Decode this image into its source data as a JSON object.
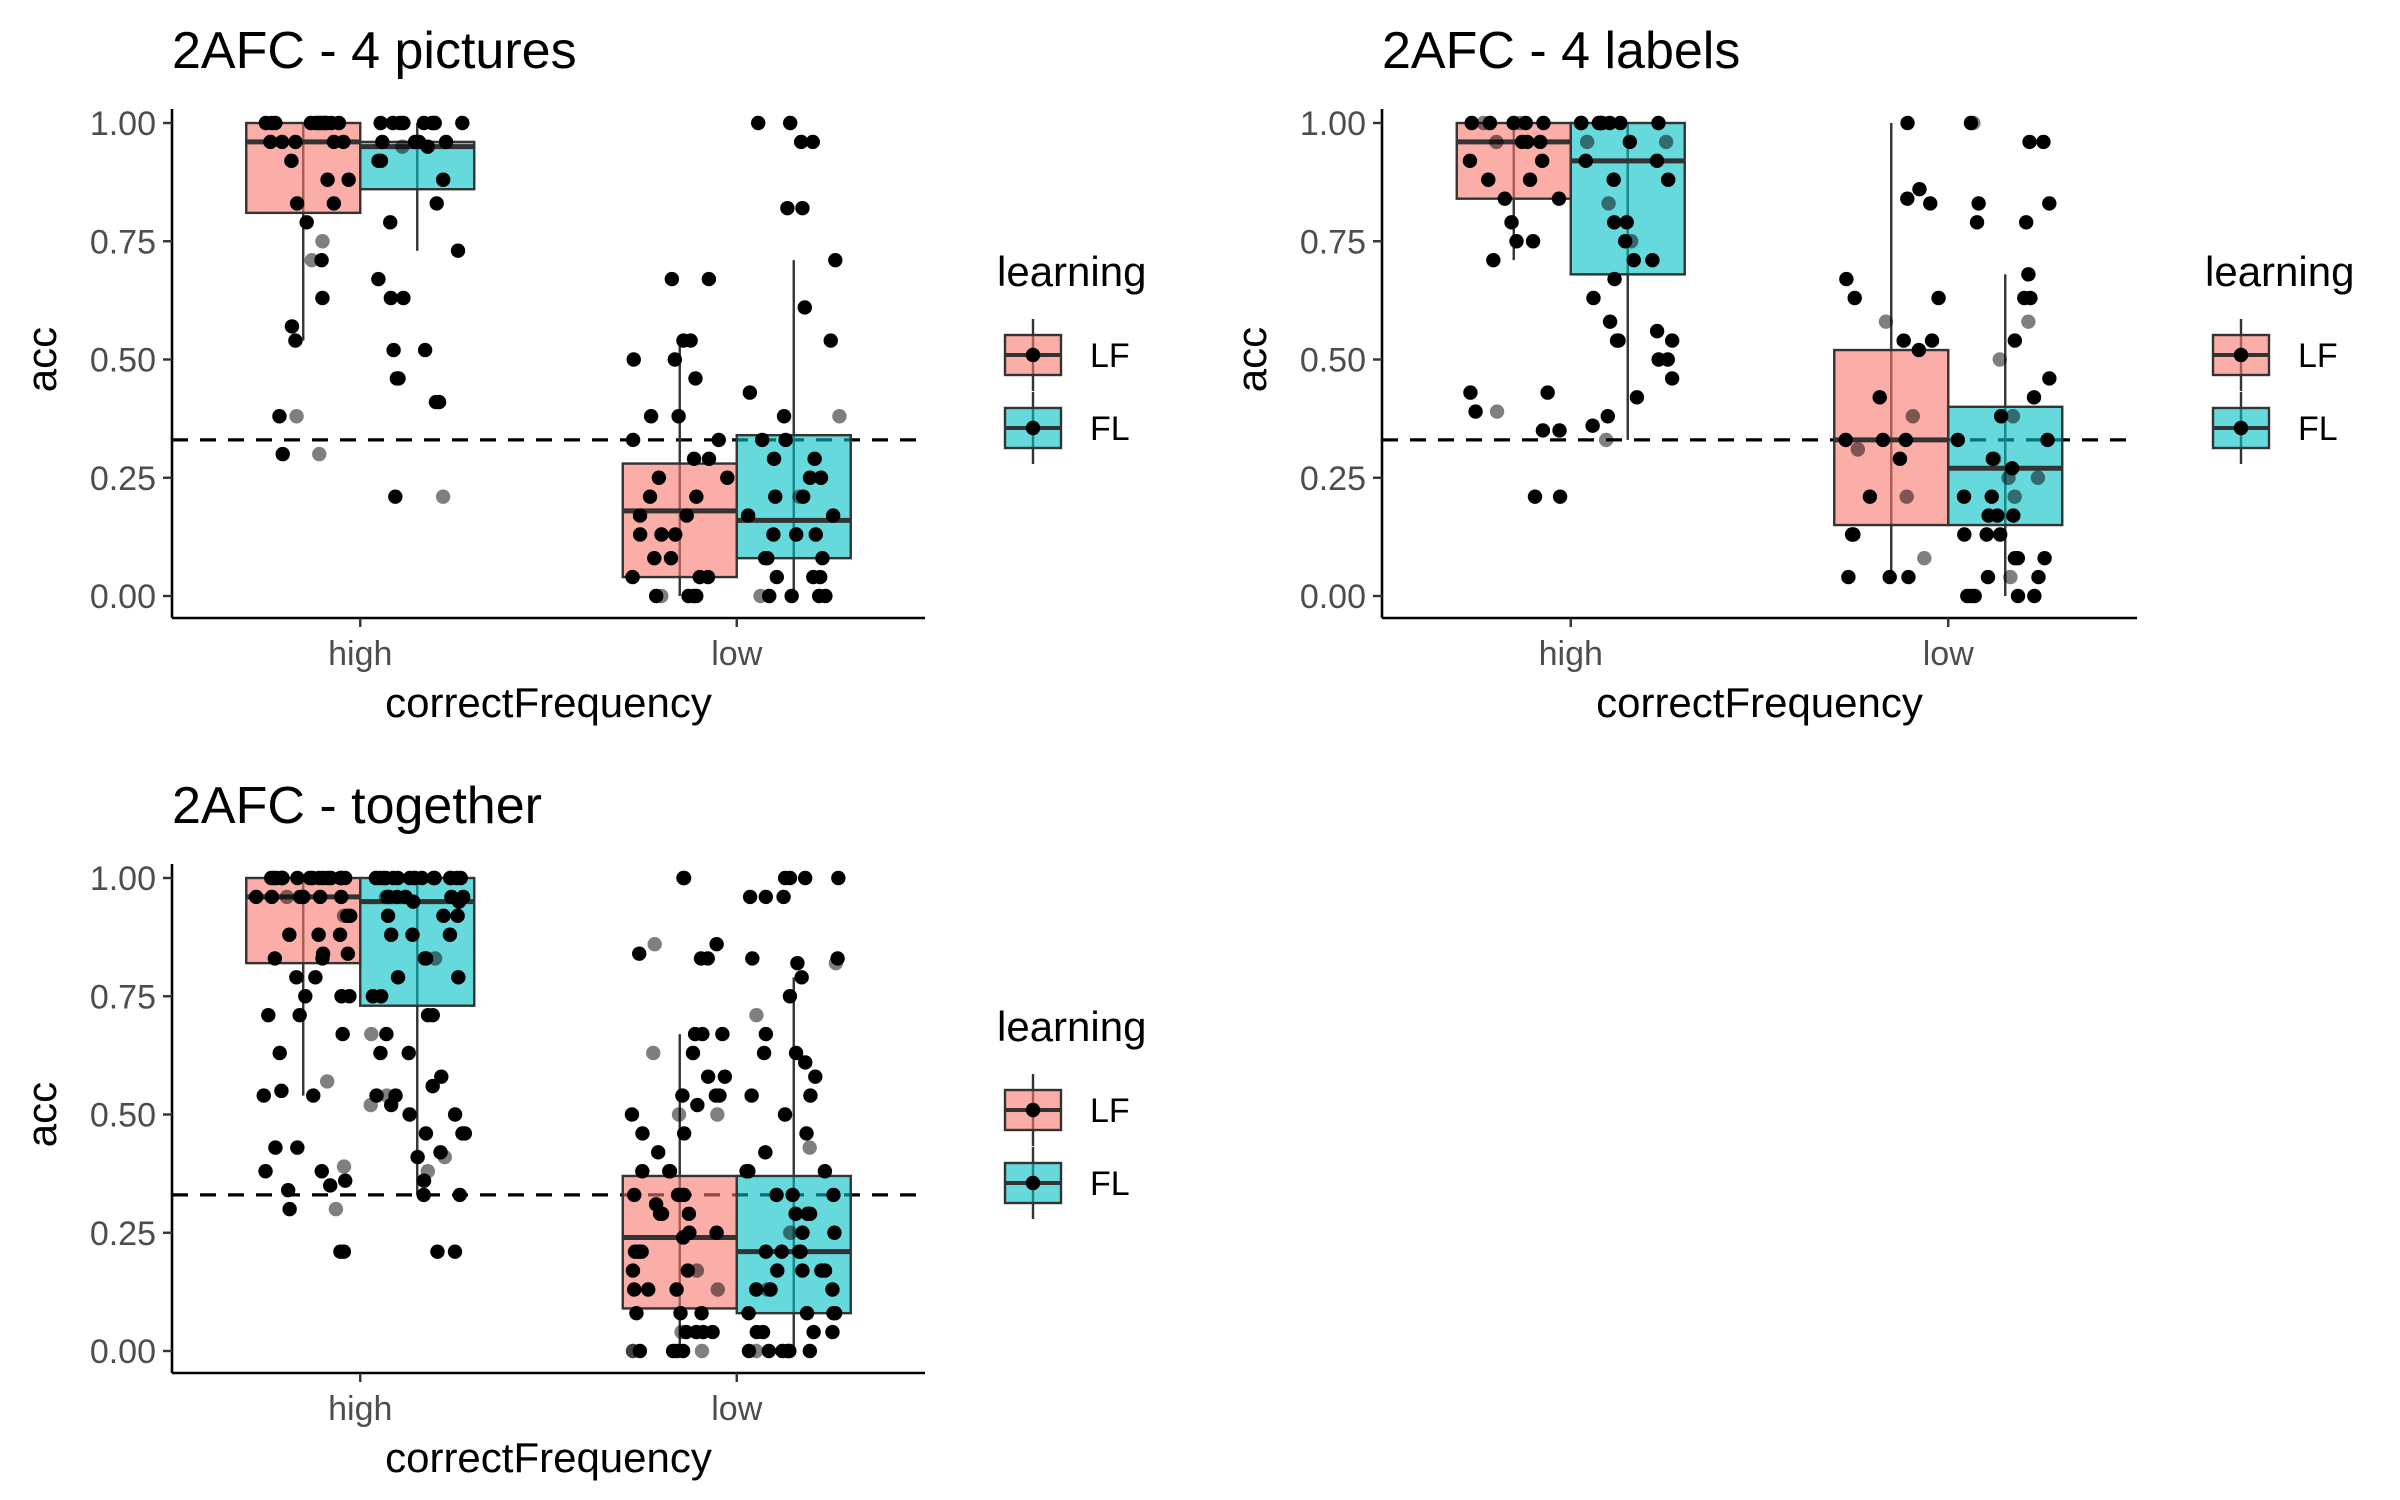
{
  "colors": {
    "LF": "#F8766D",
    "FL": "#00BFC4",
    "points": "#000000",
    "axis": "#000000"
  },
  "legend": {
    "title": "learning",
    "items": [
      "LF",
      "FL"
    ]
  },
  "chart_data": [
    {
      "type": "box",
      "title": "2AFC - 4 pictures",
      "xlabel": "correctFrequency",
      "ylabel": "acc",
      "ylim": [
        0,
        1
      ],
      "yticks": [
        "0.00",
        "0.25",
        "0.50",
        "0.75",
        "1.00"
      ],
      "categories": [
        "high",
        "low"
      ],
      "reference_line": 0.33,
      "series": [
        {
          "name": "LF",
          "boxes": [
            {
              "min": 0.54,
              "q1": 0.81,
              "median": 0.96,
              "q3": 1.0,
              "max": 1.0,
              "points": [
                1,
                1,
                1,
                1,
                1,
                1,
                1,
                1,
                1,
                1,
                1,
                1,
                0.96,
                0.96,
                0.96,
                0.96,
                0.96,
                0.92,
                0.88,
                0.88,
                0.83,
                0.83,
                0.79,
                0.75,
                0.71,
                0.71,
                0.63,
                0.57,
                0.54,
                0.38,
                0.38,
                0.3,
                0.3
              ]
            },
            {
              "min": 0.0,
              "q1": 0.04,
              "median": 0.18,
              "q3": 0.28,
              "max": 0.54,
              "points": [
                0.67,
                0.67,
                0.54,
                0.54,
                0.5,
                0.5,
                0.46,
                0.38,
                0.38,
                0.33,
                0.33,
                0.29,
                0.29,
                0.25,
                0.25,
                0.21,
                0.21,
                0.17,
                0.17,
                0.13,
                0.13,
                0.13,
                0.08,
                0.08,
                0.04,
                0.04,
                0.04,
                0,
                0,
                0,
                0,
                0
              ]
            }
          ]
        },
        {
          "name": "FL",
          "boxes": [
            {
              "min": 0.73,
              "q1": 0.86,
              "median": 0.95,
              "q3": 0.96,
              "max": 1.0,
              "points": [
                1,
                1,
                1,
                1,
                1,
                1,
                1,
                1,
                1,
                0.96,
                0.96,
                0.96,
                0.96,
                0.95,
                0.95,
                0.92,
                0.92,
                0.88,
                0.83,
                0.79,
                0.73,
                0.67,
                0.63,
                0.63,
                0.52,
                0.52,
                0.46,
                0.46,
                0.41,
                0.41,
                0.21,
                0.21
              ]
            },
            {
              "min": 0.0,
              "q1": 0.08,
              "median": 0.16,
              "q3": 0.34,
              "max": 0.71,
              "points": [
                1,
                1,
                0.96,
                0.96,
                0.82,
                0.82,
                0.71,
                0.61,
                0.54,
                0.43,
                0.38,
                0.38,
                0.33,
                0.33,
                0.29,
                0.29,
                0.25,
                0.25,
                0.21,
                0.21,
                0.21,
                0.17,
                0.17,
                0.13,
                0.13,
                0.13,
                0.08,
                0.08,
                0.08,
                0.04,
                0.04,
                0.04,
                0,
                0,
                0,
                0,
                0
              ]
            }
          ]
        }
      ]
    },
    {
      "type": "box",
      "title": "2AFC - 4 labels",
      "xlabel": "correctFrequency",
      "ylabel": "acc",
      "ylim": [
        0,
        1
      ],
      "yticks": [
        "0.00",
        "0.25",
        "0.50",
        "0.75",
        "1.00"
      ],
      "categories": [
        "high",
        "low"
      ],
      "reference_line": 0.33,
      "series": [
        {
          "name": "LF",
          "boxes": [
            {
              "min": 0.71,
              "q1": 0.84,
              "median": 0.96,
              "q3": 1.0,
              "max": 1.0,
              "points": [
                1,
                1,
                1,
                1,
                1,
                1,
                1,
                0.96,
                0.96,
                0.96,
                0.96,
                0.92,
                0.92,
                0.88,
                0.88,
                0.84,
                0.84,
                0.79,
                0.75,
                0.75,
                0.71,
                0.43,
                0.43,
                0.39,
                0.39,
                0.35,
                0.35,
                0.21,
                0.21
              ]
            },
            {
              "min": 0.04,
              "q1": 0.15,
              "median": 0.33,
              "q3": 0.52,
              "max": 1.0,
              "points": [
                1,
                0.86,
                0.84,
                0.83,
                0.67,
                0.63,
                0.63,
                0.58,
                0.54,
                0.54,
                0.52,
                0.42,
                0.38,
                0.33,
                0.33,
                0.33,
                0.31,
                0.29,
                0.21,
                0.21,
                0.13,
                0.13,
                0.08,
                0.04,
                0.04,
                0.04
              ]
            }
          ]
        },
        {
          "name": "FL",
          "boxes": [
            {
              "min": 0.33,
              "q1": 0.68,
              "median": 0.92,
              "q3": 1.0,
              "max": 1.0,
              "points": [
                1,
                1,
                1,
                1,
                1,
                1,
                1,
                1,
                0.96,
                0.96,
                0.96,
                0.92,
                0.92,
                0.88,
                0.88,
                0.83,
                0.79,
                0.79,
                0.75,
                0.75,
                0.71,
                0.71,
                0.67,
                0.63,
                0.58,
                0.56,
                0.54,
                0.54,
                0.54,
                0.5,
                0.5,
                0.46,
                0.42,
                0.38,
                0.36,
                0.33
              ]
            },
            {
              "min": 0.0,
              "q1": 0.15,
              "median": 0.27,
              "q3": 0.4,
              "max": 0.68,
              "points": [
                1,
                1,
                0.96,
                0.96,
                0.83,
                0.83,
                0.79,
                0.79,
                0.68,
                0.63,
                0.63,
                0.58,
                0.54,
                0.5,
                0.46,
                0.42,
                0.38,
                0.38,
                0.33,
                0.33,
                0.29,
                0.29,
                0.27,
                0.25,
                0.25,
                0.21,
                0.21,
                0.21,
                0.17,
                0.17,
                0.17,
                0.13,
                0.13,
                0.13,
                0.08,
                0.08,
                0.08,
                0.04,
                0.04,
                0.04,
                0,
                0,
                0,
                0,
                0
              ]
            }
          ]
        }
      ]
    },
    {
      "type": "box",
      "title": "2AFC - together",
      "xlabel": "correctFrequency",
      "ylabel": "acc",
      "ylim": [
        0,
        1
      ],
      "yticks": [
        "0.00",
        "0.25",
        "0.50",
        "0.75",
        "1.00"
      ],
      "categories": [
        "high",
        "low"
      ],
      "reference_line": 0.33,
      "series": [
        {
          "name": "LF",
          "boxes": [
            {
              "min": 0.54,
              "q1": 0.82,
              "median": 0.96,
              "q3": 1.0,
              "max": 1.0,
              "points": [
                1,
                1,
                1,
                1,
                1,
                1,
                1,
                1,
                1,
                1,
                1,
                1,
                1,
                1,
                1,
                1,
                1,
                1,
                0.96,
                0.96,
                0.96,
                0.96,
                0.96,
                0.96,
                0.96,
                0.96,
                0.92,
                0.92,
                0.92,
                0.88,
                0.88,
                0.88,
                0.84,
                0.84,
                0.83,
                0.83,
                0.79,
                0.79,
                0.75,
                0.75,
                0.75,
                0.71,
                0.71,
                0.67,
                0.63,
                0.57,
                0.55,
                0.54,
                0.54,
                0.43,
                0.43,
                0.39,
                0.38,
                0.38,
                0.36,
                0.35,
                0.34,
                0.3,
                0.3,
                0.21,
                0.21
              ]
            },
            {
              "min": 0.0,
              "q1": 0.09,
              "median": 0.24,
              "q3": 0.37,
              "max": 0.67,
              "points": [
                1,
                1,
                0.86,
                0.86,
                0.84,
                0.83,
                0.83,
                0.67,
                0.67,
                0.67,
                0.63,
                0.63,
                0.58,
                0.58,
                0.54,
                0.54,
                0.54,
                0.52,
                0.5,
                0.5,
                0.5,
                0.46,
                0.46,
                0.42,
                0.38,
                0.38,
                0.38,
                0.33,
                0.33,
                0.33,
                0.33,
                0.31,
                0.29,
                0.29,
                0.29,
                0.25,
                0.25,
                0.24,
                0.21,
                0.21,
                0.21,
                0.21,
                0.17,
                0.17,
                0.17,
                0.13,
                0.13,
                0.13,
                0.13,
                0.08,
                0.08,
                0.08,
                0.04,
                0.04,
                0.04,
                0.04,
                0.04,
                0,
                0,
                0,
                0,
                0,
                0,
                0
              ]
            }
          ]
        },
        {
          "name": "FL",
          "boxes": [
            {
              "min": 0.33,
              "q1": 0.73,
              "median": 0.95,
              "q3": 1.0,
              "max": 1.0,
              "points": [
                1,
                1,
                1,
                1,
                1,
                1,
                1,
                1,
                1,
                1,
                1,
                1,
                1,
                1,
                1,
                1,
                1,
                0.96,
                0.96,
                0.96,
                0.96,
                0.96,
                0.96,
                0.96,
                0.95,
                0.95,
                0.92,
                0.92,
                0.92,
                0.88,
                0.88,
                0.88,
                0.83,
                0.83,
                0.83,
                0.79,
                0.79,
                0.75,
                0.75,
                0.71,
                0.71,
                0.67,
                0.67,
                0.63,
                0.63,
                0.58,
                0.56,
                0.54,
                0.54,
                0.54,
                0.52,
                0.52,
                0.5,
                0.5,
                0.46,
                0.46,
                0.46,
                0.42,
                0.41,
                0.41,
                0.38,
                0.36,
                0.33,
                0.33,
                0.21,
                0.21
              ]
            },
            {
              "min": 0.0,
              "q1": 0.08,
              "median": 0.21,
              "q3": 0.37,
              "max": 0.79,
              "points": [
                1,
                1,
                1,
                1,
                0.96,
                0.96,
                0.96,
                0.83,
                0.83,
                0.82,
                0.82,
                0.79,
                0.75,
                0.71,
                0.67,
                0.63,
                0.63,
                0.61,
                0.58,
                0.54,
                0.54,
                0.5,
                0.46,
                0.43,
                0.42,
                0.38,
                0.38,
                0.38,
                0.33,
                0.33,
                0.33,
                0.29,
                0.29,
                0.29,
                0.25,
                0.25,
                0.25,
                0.21,
                0.21,
                0.21,
                0.21,
                0.17,
                0.17,
                0.17,
                0.17,
                0.13,
                0.13,
                0.13,
                0.13,
                0.08,
                0.08,
                0.08,
                0.08,
                0.04,
                0.04,
                0.04,
                0.04,
                0,
                0,
                0,
                0,
                0,
                0,
                0
              ]
            }
          ]
        }
      ]
    }
  ]
}
